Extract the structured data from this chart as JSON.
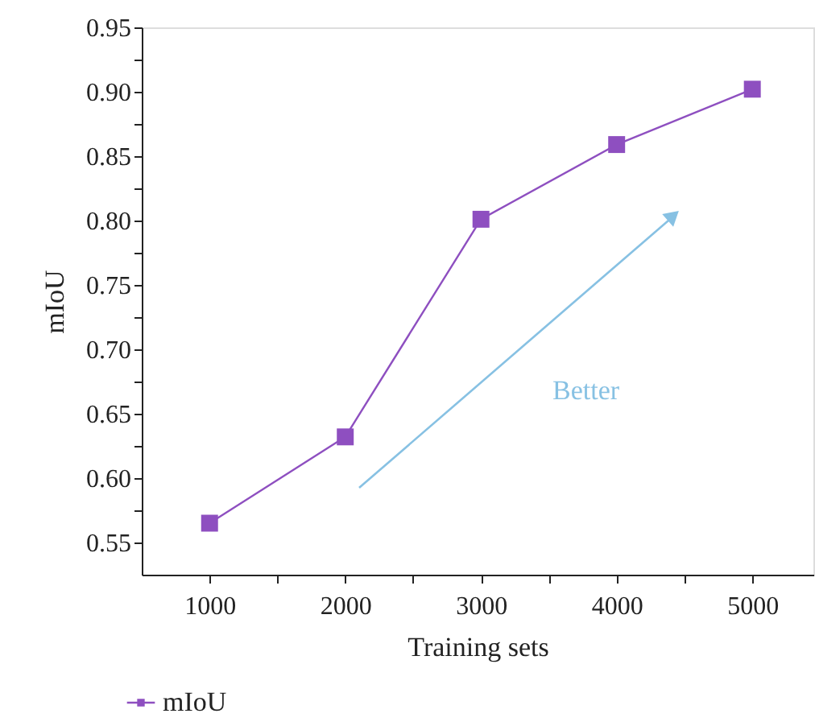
{
  "chart_data": {
    "type": "line",
    "xlabel": "Training sets",
    "ylabel": "mIoU",
    "x": [
      1000,
      2000,
      3000,
      4000,
      5000
    ],
    "series": [
      {
        "name": "mIoU",
        "color": "#8e4fc0",
        "values": [
          0.565,
          0.632,
          0.801,
          0.859,
          0.902
        ]
      }
    ],
    "marker": "square",
    "line_style": "solid",
    "legend": "bottom left",
    "grid": false,
    "xlim": [
      500,
      5450
    ],
    "ylim": [
      0.525,
      0.95
    ],
    "xticks": [
      1000,
      {
        "value": 1500,
        "label": null
      },
      2000,
      {
        "value": 2500,
        "label": null
      },
      3000,
      {
        "value": 3500,
        "label": null
      },
      4000,
      {
        "value": 4500,
        "label": null
      },
      5000
    ],
    "yticks": [
      0.55,
      {
        "value": 0.575,
        "label": null
      },
      {
        "value": 0.6,
        "label": "0.60"
      },
      {
        "value": 0.625,
        "label": null
      },
      0.65,
      {
        "value": 0.675,
        "label": null
      },
      {
        "value": 0.7,
        "label": "0.70"
      },
      {
        "value": 0.725,
        "label": null
      },
      0.75,
      {
        "value": 0.775,
        "label": null
      },
      {
        "value": 0.8,
        "label": "0.80"
      },
      {
        "value": 0.825,
        "label": null
      },
      0.85,
      {
        "value": 0.875,
        "label": null
      },
      {
        "value": 0.9,
        "label": "0.90"
      },
      {
        "value": 0.925,
        "label": null
      },
      0.95
    ],
    "annotations": [
      "Better"
    ]
  }
}
